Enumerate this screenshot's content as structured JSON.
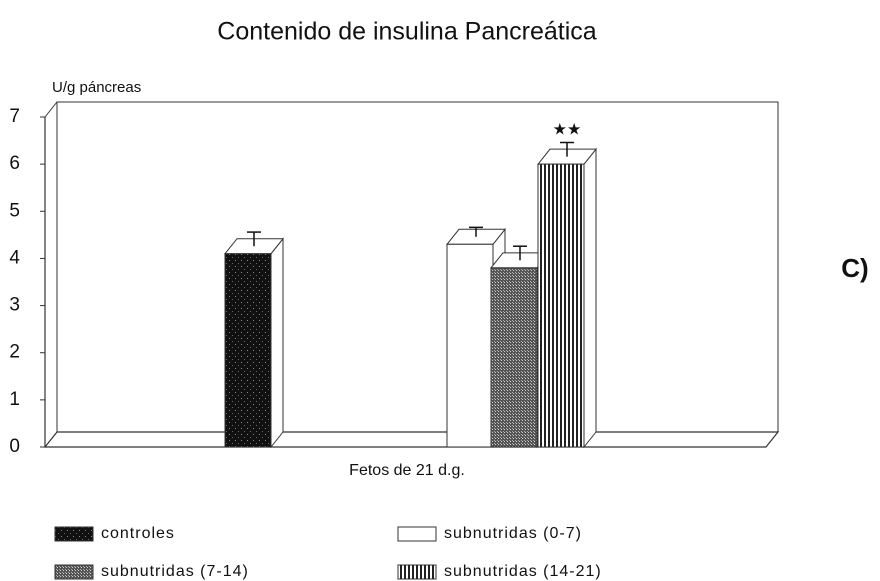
{
  "chart_data": {
    "type": "bar3d",
    "title": "Contenido de insulina Pancreática",
    "y_label": "U/g páncreas",
    "x_label": "Fetos de 21 d.g.",
    "annotation": "★★",
    "panel_label": "C)",
    "ylim": [
      0,
      7
    ],
    "yticks": [
      0,
      1,
      2,
      3,
      4,
      5,
      6,
      7
    ],
    "series": [
      {
        "name": "controles",
        "color": "#111111",
        "pattern": "speckle",
        "values": [
          4.1
        ],
        "errors": [
          0.3
        ]
      },
      {
        "name": "subnutridas (0-7)",
        "color": "#ffffff",
        "pattern": "solid",
        "values": [
          4.3
        ],
        "errors": [
          0.2
        ]
      },
      {
        "name": "subnutridas (7-14)",
        "color": "#777777",
        "pattern": "dots",
        "values": [
          3.8
        ],
        "errors": [
          0.3
        ]
      },
      {
        "name": "subnutridas (14-21)",
        "color": "#ffffff",
        "pattern": "vstripes",
        "values": [
          6.0
        ],
        "errors": [
          0.3
        ]
      }
    ]
  }
}
